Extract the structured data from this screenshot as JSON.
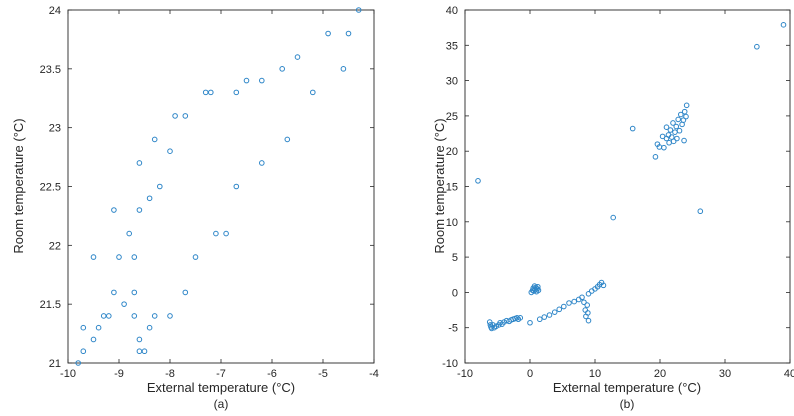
{
  "chart_data": [
    {
      "type": "scatter",
      "caption": "(a)",
      "xlabel": "External temperature (°C)",
      "ylabel": "Room temperature (°C)",
      "xlim": [
        -10,
        -4
      ],
      "ylim": [
        21,
        24
      ],
      "xticks": [
        -10,
        -9,
        -8,
        -7,
        -6,
        -5,
        -4
      ],
      "yticks": [
        21,
        21.5,
        22,
        22.5,
        23,
        23.5,
        24
      ],
      "xtick_labels": [
        "-10",
        "-9",
        "-8",
        "-7",
        "-6",
        "-5",
        "-4"
      ],
      "ytick_labels": [
        "21",
        "21.5",
        "22",
        "22.5",
        "23",
        "23.5",
        "24"
      ],
      "grid": false,
      "marker_color": "#2E86C8",
      "points": [
        [
          -9.8,
          21.0
        ],
        [
          -9.7,
          21.1
        ],
        [
          -9.7,
          21.3
        ],
        [
          -9.5,
          21.2
        ],
        [
          -9.5,
          21.9
        ],
        [
          -9.4,
          21.3
        ],
        [
          -9.3,
          21.4
        ],
        [
          -9.2,
          21.4
        ],
        [
          -9.1,
          21.6
        ],
        [
          -9.1,
          22.3
        ],
        [
          -9.0,
          21.9
        ],
        [
          -8.9,
          21.5
        ],
        [
          -8.8,
          22.1
        ],
        [
          -8.7,
          21.4
        ],
        [
          -8.7,
          21.6
        ],
        [
          -8.7,
          21.9
        ],
        [
          -8.6,
          21.1
        ],
        [
          -8.6,
          21.2
        ],
        [
          -8.6,
          22.3
        ],
        [
          -8.6,
          22.7
        ],
        [
          -8.5,
          21.1
        ],
        [
          -8.4,
          21.3
        ],
        [
          -8.4,
          22.4
        ],
        [
          -8.3,
          21.4
        ],
        [
          -8.3,
          22.9
        ],
        [
          -8.2,
          22.5
        ],
        [
          -8.0,
          21.4
        ],
        [
          -8.0,
          22.8
        ],
        [
          -7.9,
          23.1
        ],
        [
          -7.7,
          21.6
        ],
        [
          -7.7,
          23.1
        ],
        [
          -7.5,
          21.9
        ],
        [
          -7.3,
          23.3
        ],
        [
          -7.2,
          23.3
        ],
        [
          -7.1,
          22.1
        ],
        [
          -6.9,
          22.1
        ],
        [
          -6.7,
          22.5
        ],
        [
          -6.7,
          23.3
        ],
        [
          -6.5,
          23.4
        ],
        [
          -6.2,
          22.7
        ],
        [
          -6.2,
          23.4
        ],
        [
          -5.8,
          23.5
        ],
        [
          -5.7,
          22.9
        ],
        [
          -5.5,
          23.6
        ],
        [
          -5.2,
          23.3
        ],
        [
          -4.9,
          23.8
        ],
        [
          -4.6,
          23.5
        ],
        [
          -4.5,
          23.8
        ],
        [
          -4.3,
          24.0
        ]
      ]
    },
    {
      "type": "scatter",
      "caption": "(b)",
      "xlabel": "External temperature (°C)",
      "ylabel": "Room temperature (°C)",
      "xlim": [
        -10,
        40
      ],
      "ylim": [
        -10,
        40
      ],
      "xticks": [
        -10,
        0,
        10,
        20,
        30,
        40
      ],
      "yticks": [
        -10,
        -5,
        0,
        5,
        10,
        15,
        20,
        25,
        30,
        35,
        40
      ],
      "xtick_labels": [
        "-10",
        "0",
        "10",
        "20",
        "30",
        "40"
      ],
      "ytick_labels": [
        "-10",
        "-5",
        "0",
        "5",
        "10",
        "15",
        "20",
        "25",
        "30",
        "35",
        "40"
      ],
      "grid": false,
      "marker_color": "#2E86C8",
      "points": [
        [
          -8.0,
          15.8
        ],
        [
          -6.2,
          -4.2
        ],
        [
          -6.1,
          -4.6
        ],
        [
          -6.0,
          -4.9
        ],
        [
          -5.9,
          -5.1
        ],
        [
          -5.7,
          -4.6
        ],
        [
          -5.5,
          -5.0
        ],
        [
          -5.2,
          -4.8
        ],
        [
          -4.8,
          -4.6
        ],
        [
          -4.6,
          -4.3
        ],
        [
          -4.3,
          -4.5
        ],
        [
          -4.0,
          -4.2
        ],
        [
          -3.6,
          -4.0
        ],
        [
          -3.2,
          -4.1
        ],
        [
          -2.9,
          -3.9
        ],
        [
          -2.6,
          -3.8
        ],
        [
          -2.3,
          -3.7
        ],
        [
          -2.0,
          -3.6
        ],
        [
          -1.8,
          -3.8
        ],
        [
          -1.5,
          -3.6
        ],
        [
          0.0,
          -4.3
        ],
        [
          0.2,
          0.0
        ],
        [
          0.4,
          0.3
        ],
        [
          0.5,
          0.6
        ],
        [
          0.6,
          0.2
        ],
        [
          0.7,
          0.9
        ],
        [
          0.8,
          0.4
        ],
        [
          0.9,
          0.7
        ],
        [
          1.0,
          0.1
        ],
        [
          1.1,
          0.5
        ],
        [
          1.2,
          0.8
        ],
        [
          1.3,
          0.3
        ],
        [
          1.5,
          -3.8
        ],
        [
          2.2,
          -3.5
        ],
        [
          3.0,
          -3.2
        ],
        [
          3.8,
          -2.8
        ],
        [
          4.5,
          -2.4
        ],
        [
          5.2,
          -2.0
        ],
        [
          6.0,
          -1.5
        ],
        [
          6.8,
          -1.3
        ],
        [
          7.5,
          -1.0
        ],
        [
          8.0,
          -0.7
        ],
        [
          8.3,
          -1.4
        ],
        [
          8.5,
          -2.5
        ],
        [
          8.6,
          -3.4
        ],
        [
          8.8,
          -1.8
        ],
        [
          8.9,
          -2.9
        ],
        [
          9.0,
          -4.0
        ],
        [
          9.0,
          -0.2
        ],
        [
          9.5,
          0.2
        ],
        [
          10.0,
          0.5
        ],
        [
          10.4,
          0.8
        ],
        [
          10.7,
          1.1
        ],
        [
          11.0,
          1.4
        ],
        [
          11.3,
          1.0
        ],
        [
          12.8,
          10.6
        ],
        [
          15.8,
          23.2
        ],
        [
          19.3,
          19.2
        ],
        [
          19.6,
          21.0
        ],
        [
          19.9,
          20.6
        ],
        [
          20.4,
          22.1
        ],
        [
          20.6,
          20.5
        ],
        [
          21.0,
          21.8
        ],
        [
          21.0,
          23.4
        ],
        [
          21.3,
          22.3
        ],
        [
          21.4,
          21.2
        ],
        [
          21.6,
          23.0
        ],
        [
          21.8,
          22.0
        ],
        [
          22.0,
          24.0
        ],
        [
          22.1,
          21.4
        ],
        [
          22.3,
          22.7
        ],
        [
          22.5,
          23.5
        ],
        [
          22.6,
          21.8
        ],
        [
          22.8,
          24.5
        ],
        [
          23.0,
          22.9
        ],
        [
          23.2,
          25.2
        ],
        [
          23.4,
          23.8
        ],
        [
          23.6,
          24.4
        ],
        [
          23.7,
          21.5
        ],
        [
          23.8,
          25.6
        ],
        [
          24.0,
          24.9
        ],
        [
          24.1,
          26.5
        ],
        [
          26.2,
          11.5
        ],
        [
          34.9,
          34.8
        ],
        [
          39.0,
          37.9
        ]
      ]
    }
  ]
}
